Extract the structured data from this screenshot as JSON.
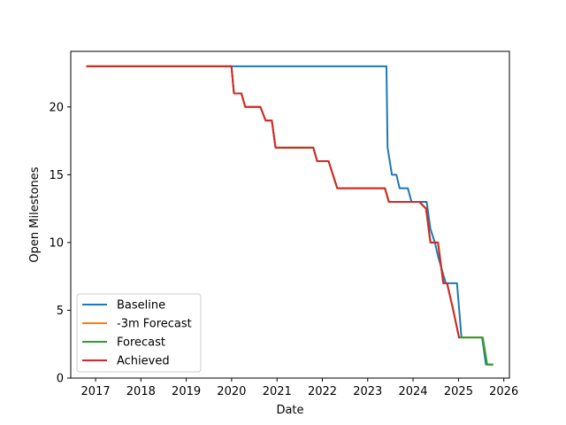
{
  "chart_data": {
    "type": "line",
    "title": "",
    "xlabel": "Date",
    "ylabel": "Open Milestones",
    "xlim": [
      "2016-06-15",
      "2026-02-15"
    ],
    "ylim": [
      0,
      24.1
    ],
    "x_ticks": [
      {
        "date": "2017-01-01",
        "label": "2017"
      },
      {
        "date": "2018-01-01",
        "label": "2018"
      },
      {
        "date": "2019-01-01",
        "label": "2019"
      },
      {
        "date": "2020-01-01",
        "label": "2020"
      },
      {
        "date": "2021-01-01",
        "label": "2021"
      },
      {
        "date": "2022-01-01",
        "label": "2022"
      },
      {
        "date": "2023-01-01",
        "label": "2023"
      },
      {
        "date": "2024-01-01",
        "label": "2024"
      },
      {
        "date": "2025-01-01",
        "label": "2025"
      },
      {
        "date": "2026-01-01",
        "label": "2026"
      }
    ],
    "y_ticks": [
      0,
      5,
      10,
      15,
      20
    ],
    "grid": false,
    "legend_position": "lower-left",
    "series": [
      {
        "name": "Baseline",
        "color": "#1f77b4",
        "points": [
          [
            "2016-10-25",
            23
          ],
          [
            "2023-06-01",
            23
          ],
          [
            "2023-06-10",
            17
          ],
          [
            "2023-07-15",
            15
          ],
          [
            "2023-08-20",
            15
          ],
          [
            "2023-09-15",
            14
          ],
          [
            "2023-11-20",
            14
          ],
          [
            "2023-12-20",
            13
          ],
          [
            "2024-04-20",
            13
          ],
          [
            "2024-05-20",
            11
          ],
          [
            "2024-06-25",
            10
          ],
          [
            "2024-07-20",
            9
          ],
          [
            "2024-09-20",
            7
          ],
          [
            "2024-12-20",
            7
          ],
          [
            "2025-01-25",
            3
          ],
          [
            "2025-07-10",
            3
          ],
          [
            "2025-08-10",
            1
          ],
          [
            "2025-09-25",
            1
          ]
        ]
      },
      {
        "name": "-3m Forecast",
        "color": "#ff7f0e",
        "points": [
          [
            "2016-10-25",
            23
          ],
          [
            "2019-12-31",
            23
          ],
          [
            "2020-01-20",
            21
          ],
          [
            "2020-03-20",
            21
          ],
          [
            "2020-04-20",
            20
          ],
          [
            "2020-08-20",
            20
          ],
          [
            "2020-10-01",
            19
          ],
          [
            "2020-11-20",
            19
          ],
          [
            "2020-12-20",
            17
          ],
          [
            "2021-10-20",
            17
          ],
          [
            "2021-11-20",
            16
          ],
          [
            "2022-02-20",
            16
          ],
          [
            "2022-05-01",
            14
          ],
          [
            "2023-05-20",
            14
          ],
          [
            "2023-06-20",
            13
          ],
          [
            "2024-02-20",
            13
          ],
          [
            "2024-04-15",
            12.5
          ],
          [
            "2024-05-20",
            10
          ],
          [
            "2024-07-20",
            10
          ],
          [
            "2024-09-01",
            7
          ],
          [
            "2024-10-01",
            7
          ],
          [
            "2024-11-20",
            5
          ],
          [
            "2025-01-05",
            3
          ],
          [
            "2025-07-15",
            3
          ],
          [
            "2025-08-20",
            1
          ],
          [
            "2025-10-01",
            1
          ]
        ]
      },
      {
        "name": "Forecast",
        "color": "#2ca02c",
        "points": [
          [
            "2016-10-25",
            23
          ],
          [
            "2019-12-31",
            23
          ],
          [
            "2020-01-20",
            21
          ],
          [
            "2020-03-20",
            21
          ],
          [
            "2020-04-20",
            20
          ],
          [
            "2020-08-20",
            20
          ],
          [
            "2020-10-01",
            19
          ],
          [
            "2020-11-20",
            19
          ],
          [
            "2020-12-20",
            17
          ],
          [
            "2021-10-20",
            17
          ],
          [
            "2021-11-20",
            16
          ],
          [
            "2022-02-20",
            16
          ],
          [
            "2022-05-01",
            14
          ],
          [
            "2023-05-20",
            14
          ],
          [
            "2023-06-20",
            13
          ],
          [
            "2024-02-20",
            13
          ],
          [
            "2024-04-15",
            12.5
          ],
          [
            "2024-05-20",
            10
          ],
          [
            "2024-07-20",
            10
          ],
          [
            "2024-09-01",
            7
          ],
          [
            "2024-10-01",
            7
          ],
          [
            "2024-11-20",
            5
          ],
          [
            "2025-01-05",
            3
          ],
          [
            "2025-07-15",
            3
          ],
          [
            "2025-08-20",
            1
          ],
          [
            "2025-10-01",
            1
          ]
        ]
      },
      {
        "name": "Achieved",
        "color": "#d62728",
        "points": [
          [
            "2016-10-25",
            23
          ],
          [
            "2019-12-31",
            23
          ],
          [
            "2020-01-20",
            21
          ],
          [
            "2020-03-20",
            21
          ],
          [
            "2020-04-20",
            20
          ],
          [
            "2020-08-20",
            20
          ],
          [
            "2020-10-01",
            19
          ],
          [
            "2020-11-20",
            19
          ],
          [
            "2020-12-20",
            17
          ],
          [
            "2021-10-20",
            17
          ],
          [
            "2021-11-20",
            16
          ],
          [
            "2022-02-20",
            16
          ],
          [
            "2022-05-01",
            14
          ],
          [
            "2023-05-20",
            14
          ],
          [
            "2023-06-20",
            13
          ],
          [
            "2024-02-20",
            13
          ],
          [
            "2024-04-15",
            12.5
          ],
          [
            "2024-05-20",
            10
          ],
          [
            "2024-07-20",
            10
          ],
          [
            "2024-09-01",
            7
          ],
          [
            "2024-10-01",
            7
          ],
          [
            "2024-11-20",
            5
          ],
          [
            "2025-01-05",
            3
          ]
        ]
      }
    ]
  }
}
